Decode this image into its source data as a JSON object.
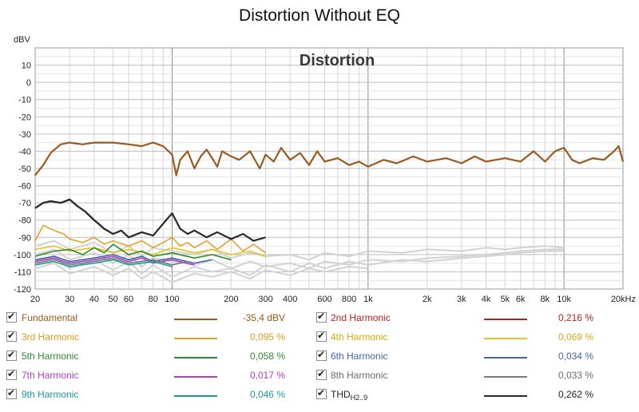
{
  "chart_data": {
    "type": "line",
    "title": "Distortion Without EQ",
    "plot_label": "Distortion",
    "ylabel": "dBV",
    "xlabel": "",
    "x_scale": "log",
    "xlim": [
      20,
      20000
    ],
    "ylim": [
      -120,
      20
    ],
    "grid": true,
    "x_ticks": [
      20,
      30,
      40,
      50,
      60,
      80,
      100,
      200,
      300,
      400,
      600,
      800,
      1000,
      2000,
      3000,
      4000,
      5000,
      6000,
      8000,
      10000,
      20000
    ],
    "x_tick_labels": [
      "20",
      "30",
      "40",
      "50",
      "60",
      "80",
      "100",
      "200",
      "300",
      "400",
      "600",
      "800",
      "1k",
      "2k",
      "3k",
      "4k",
      "5k",
      "6k",
      "8k",
      "10k",
      "20kHz"
    ],
    "y_ticks": [
      10,
      0,
      -10,
      -20,
      -30,
      -40,
      -50,
      -60,
      -70,
      -80,
      -90,
      -100,
      -110,
      -120
    ],
    "y_tick_labels": [
      "10",
      "0",
      "-10",
      "-20",
      "-30",
      "-40",
      "-50",
      "-60",
      "-70",
      "-80",
      "-90",
      "-100",
      "-110",
      "-120"
    ],
    "series": [
      {
        "name": "Fundamental",
        "color": "#9a5a1e",
        "x": [
          20,
          22,
          24,
          27,
          30,
          35,
          40,
          50,
          60,
          70,
          80,
          90,
          100,
          105,
          110,
          120,
          130,
          140,
          150,
          160,
          170,
          180,
          200,
          220,
          250,
          280,
          300,
          330,
          360,
          400,
          450,
          500,
          550,
          600,
          700,
          800,
          900,
          1000,
          1200,
          1400,
          1700,
          2000,
          2500,
          3000,
          3500,
          4000,
          5000,
          6000,
          7000,
          8000,
          9000,
          10000,
          11000,
          12000,
          14000,
          16000,
          18000,
          19000,
          20000
        ],
        "y": [
          -54,
          -48,
          -41,
          -36,
          -35,
          -36,
          -35,
          -35,
          -36,
          -37,
          -35,
          -37,
          -42,
          -54,
          -45,
          -40,
          -50,
          -43,
          -39,
          -44,
          -49,
          -40,
          -43,
          -45,
          -40,
          -50,
          -42,
          -46,
          -38,
          -45,
          -41,
          -48,
          -40,
          -46,
          -44,
          -48,
          -46,
          -49,
          -45,
          -47,
          -43,
          -46,
          -44,
          -47,
          -43,
          -46,
          -44,
          -46,
          -40,
          -46,
          -40,
          -38,
          -45,
          -47,
          -44,
          -45,
          -40,
          -37,
          -46
        ]
      },
      {
        "name": "2nd Harmonic",
        "color": "#b8201c",
        "x": [
          20,
          22,
          24,
          27,
          30,
          33,
          36,
          40,
          42,
          45
        ],
        "y": [
          -73,
          -70,
          -69,
          -70,
          -68,
          -72,
          -75,
          -80,
          -82,
          -85
        ]
      },
      {
        "name": "3rd Harmonic",
        "color": "#e0a227",
        "x": [
          20,
          22,
          25,
          28,
          30,
          35,
          40,
          45,
          50,
          60,
          70,
          80,
          90,
          100,
          110,
          120,
          130,
          150,
          170,
          200,
          230,
          260,
          300
        ],
        "y": [
          -92,
          -83,
          -86,
          -88,
          -91,
          -93,
          -90,
          -94,
          -92,
          -95,
          -92,
          -96,
          -93,
          -90,
          -95,
          -93,
          -96,
          -92,
          -97,
          -91,
          -98,
          -94,
          -99
        ]
      },
      {
        "name": "4th Harmonic",
        "color": "#e6c21b",
        "x": [
          20,
          25,
          30,
          40,
          50,
          60,
          80,
          100,
          130,
          160,
          200,
          250,
          300
        ],
        "y": [
          -97,
          -95,
          -98,
          -96,
          -99,
          -97,
          -100,
          -96,
          -99,
          -97,
          -100,
          -98,
          -101
        ]
      },
      {
        "name": "5th Harmonic",
        "color": "#2e8a2e",
        "x": [
          20,
          25,
          30,
          35,
          40,
          45,
          50,
          60,
          70,
          80,
          100,
          130,
          160,
          200
        ],
        "y": [
          -101,
          -98,
          -97,
          -100,
          -96,
          -99,
          -94,
          -100,
          -98,
          -101,
          -99,
          -102,
          -100,
          -103
        ]
      },
      {
        "name": "6th Harmonic",
        "color": "#3e66a8",
        "x": [
          20,
          25,
          30,
          40,
          50,
          60,
          70,
          80,
          100,
          130,
          160
        ],
        "y": [
          -103,
          -101,
          -104,
          -102,
          -100,
          -103,
          -101,
          -104,
          -102,
          -105,
          -103
        ]
      },
      {
        "name": "7th Harmonic",
        "color": "#b23ec4",
        "x": [
          20,
          25,
          30,
          40,
          50,
          60,
          70,
          80,
          100,
          130
        ],
        "y": [
          -104,
          -102,
          -105,
          -103,
          -101,
          -104,
          -102,
          -105,
          -103,
          -106
        ]
      },
      {
        "name": "8th Harmonic",
        "color": "#7a7a7a",
        "x": [
          20,
          25,
          30,
          40,
          50,
          60,
          80,
          100,
          120
        ],
        "y": [
          -105,
          -103,
          -106,
          -104,
          -102,
          -105,
          -103,
          -106,
          -104
        ]
      },
      {
        "name": "9th Harmonic",
        "color": "#1a9a9a",
        "x": [
          20,
          25,
          30,
          40,
          50,
          60,
          80,
          100
        ],
        "y": [
          -106,
          -104,
          -107,
          -105,
          -103,
          -106,
          -104,
          -107
        ]
      },
      {
        "name": "THD H2..9",
        "color": "#2a2a2a",
        "x": [
          20,
          22,
          24,
          27,
          30,
          33,
          36,
          40,
          42,
          45,
          50,
          55,
          60,
          70,
          80,
          90,
          100,
          110,
          120,
          130,
          150,
          170,
          200,
          230,
          260,
          300
        ],
        "y": [
          -73,
          -70,
          -69,
          -70,
          -68,
          -72,
          -75,
          -80,
          -82,
          -85,
          -88,
          -86,
          -90,
          -87,
          -89,
          -82,
          -76,
          -85,
          -88,
          -86,
          -90,
          -87,
          -91,
          -88,
          -92,
          -90
        ]
      }
    ],
    "background_traces": [
      {
        "x": [
          20,
          25,
          30,
          40,
          50,
          60,
          70,
          80,
          100,
          130,
          160,
          200,
          250,
          300,
          400,
          500,
          600,
          800,
          1000,
          1500,
          2000,
          3000,
          4000,
          5000,
          6000,
          8000,
          10000
        ],
        "y": [
          -95,
          -92,
          -97,
          -93,
          -99,
          -95,
          -101,
          -96,
          -98,
          -100,
          -97,
          -102,
          -99,
          -101,
          -100,
          -103,
          -99,
          -101,
          -98,
          -99,
          -97,
          -98,
          -96,
          -97,
          -96,
          -95,
          -96
        ]
      },
      {
        "x": [
          20,
          25,
          30,
          40,
          50,
          60,
          70,
          80,
          100,
          130,
          160,
          200,
          250,
          300,
          400,
          500,
          600,
          800,
          1000,
          1500,
          2000,
          3000,
          4000,
          5000,
          6000,
          8000,
          10000
        ],
        "y": [
          -100,
          -97,
          -103,
          -99,
          -105,
          -100,
          -107,
          -102,
          -104,
          -106,
          -103,
          -108,
          -104,
          -107,
          -105,
          -108,
          -104,
          -106,
          -103,
          -104,
          -102,
          -101,
          -100,
          -99,
          -98,
          -97,
          -97
        ]
      },
      {
        "x": [
          20,
          25,
          30,
          40,
          50,
          60,
          70,
          80,
          100,
          130,
          160,
          200,
          250,
          300,
          400,
          500,
          600,
          800,
          1000,
          1500,
          2000,
          3000,
          4000,
          5000,
          6000,
          8000,
          10000
        ],
        "y": [
          -104,
          -101,
          -108,
          -103,
          -109,
          -104,
          -111,
          -106,
          -113,
          -107,
          -110,
          -108,
          -112,
          -106,
          -110,
          -105,
          -108,
          -104,
          -106,
          -103,
          -104,
          -102,
          -101,
          -100,
          -99,
          -98,
          -98
        ]
      },
      {
        "x": [
          20,
          25,
          30,
          40,
          50,
          60,
          70,
          80,
          100,
          130,
          160,
          200,
          250,
          300,
          400,
          500,
          600,
          800,
          1000
        ],
        "y": [
          -108,
          -105,
          -111,
          -107,
          -112,
          -108,
          -114,
          -110,
          -116,
          -111,
          -113,
          -110,
          -114,
          -109,
          -112,
          -108,
          -110,
          -107,
          -108
        ]
      }
    ]
  },
  "legend": [
    {
      "name": "Fundamental",
      "value": "-35,4 dBV",
      "color": "#9a5a1e",
      "text_color": "#9a5a1e"
    },
    {
      "name": "2nd Harmonic",
      "value": "0,216 %",
      "color": "#b8201c",
      "text_color": "#b8201c"
    },
    {
      "name": "3rd Harmonic",
      "value": "0,095 %",
      "color": "#e0a227",
      "text_color": "#d99a1e"
    },
    {
      "name": "4th Harmonic",
      "value": "0,069 %",
      "color": "#e6c21b",
      "text_color": "#d4aa10"
    },
    {
      "name": "5th Harmonic",
      "value": "0,058 %",
      "color": "#2e8a2e",
      "text_color": "#2e8a2e"
    },
    {
      "name": "6th Harmonic",
      "value": "0,034 %",
      "color": "#3e66a8",
      "text_color": "#3e66a8"
    },
    {
      "name": "7th Harmonic",
      "value": "0,017 %",
      "color": "#b23ec4",
      "text_color": "#b23ec4"
    },
    {
      "name": "8th Harmonic",
      "value": "0,033 %",
      "color": "#7a7a7a",
      "text_color": "#6a6a6a"
    },
    {
      "name": "9th Harmonic",
      "value": "0,046 %",
      "color": "#1a9a9a",
      "text_color": "#1a9a9a"
    },
    {
      "name": "THD",
      "name_sub": "H2..9",
      "value": "0,262 %",
      "color": "#2a2a2a",
      "text_color": "#222222"
    }
  ]
}
